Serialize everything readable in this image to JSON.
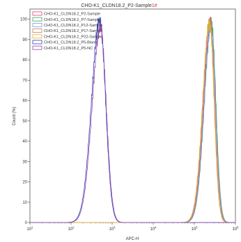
{
  "chart_data": {
    "type": "line",
    "title": "CHO-K1_CLDN18.2_P2-Sample",
    "title_suffix": "1#",
    "xlabel": "APC-H",
    "ylabel": "Count (%)",
    "x_scale": "log",
    "xlim": [
      10,
      1000000
    ],
    "ylim": [
      0,
      105
    ],
    "x_ticks": [
      10,
      100,
      1000,
      10000,
      100000,
      1000000
    ],
    "y_ticks": [
      0,
      10,
      20,
      30,
      40,
      50,
      60,
      70,
      80,
      90,
      100
    ],
    "grid": false,
    "legend_position": "top-left",
    "series": [
      {
        "name": "CHO-K1_CLDN18.2_P2-Sample",
        "color": "#e0407a",
        "peak_x": 250000,
        "peak_y": 100
      },
      {
        "name": "CHO-K1_CLDN18.2_P7-Sample",
        "color": "#3aa65a",
        "peak_x": 260000,
        "peak_y": 98
      },
      {
        "name": "CHO-K1_CLDN18.2_P12-Sample",
        "color": "#7a9ad8",
        "peak_x": 255000,
        "peak_y": 97
      },
      {
        "name": "CHO-K1_CLDN18.2_P17-Sample",
        "color": "#c8805a",
        "peak_x": 240000,
        "peak_y": 99
      },
      {
        "name": "CHO-K1_CLDN18.2_P22-Sample",
        "color": "#e0b030",
        "peak_x": 235000,
        "peak_y": 98
      },
      {
        "name": "CHO-K1_CLDN18.2_P5-Blank",
        "color": "#3040b8",
        "peak_x": 500,
        "peak_y": 100
      },
      {
        "name": "CHO-K1_CLDN18.2_P5-NC",
        "color": "#9a4aa8",
        "peak_x": 520,
        "peak_y": 96
      }
    ]
  }
}
